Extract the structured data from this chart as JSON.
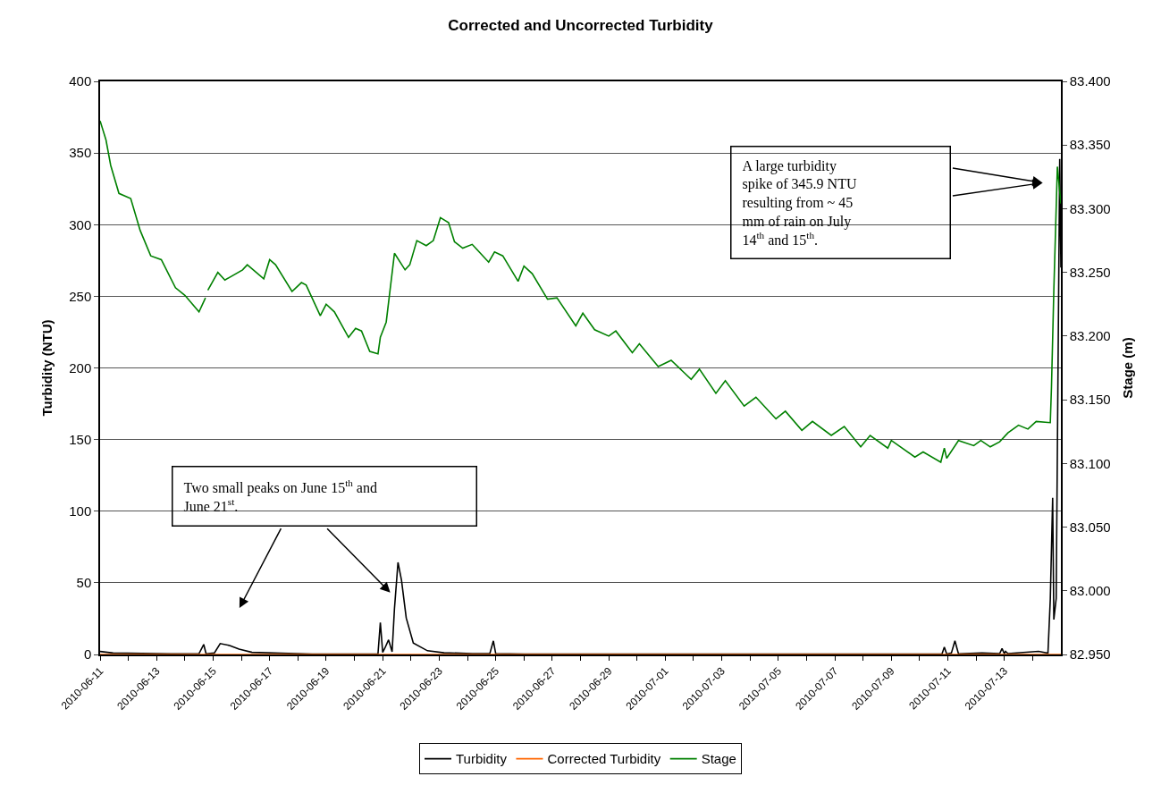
{
  "chart_data": {
    "type": "line",
    "title": "Corrected and Uncorrected Turbidity",
    "ylabel": "Turbidity (NTU)",
    "y2label": "Stage (m)",
    "xlim": [
      "2010-06-11",
      "2010-07-15"
    ],
    "xticks": [
      "2010-06-11",
      {
        "value": "2010-06-12",
        "label": null
      },
      "2010-06-13",
      {
        "value": "2010-06-14",
        "label": null
      },
      "2010-06-15",
      {
        "value": "2010-06-16",
        "label": null
      },
      "2010-06-17",
      {
        "value": "2010-06-18",
        "label": null
      },
      "2010-06-19",
      {
        "value": "2010-06-20",
        "label": null
      },
      "2010-06-21",
      {
        "value": "2010-06-22",
        "label": null
      },
      "2010-06-23",
      {
        "value": "2010-06-24",
        "label": null
      },
      "2010-06-25",
      {
        "value": "2010-06-26",
        "label": null
      },
      "2010-06-27",
      {
        "value": "2010-06-28",
        "label": null
      },
      "2010-06-29",
      {
        "value": "2010-06-30",
        "label": null
      },
      "2010-07-01",
      {
        "value": "2010-07-02",
        "label": null
      },
      "2010-07-03",
      {
        "value": "2010-07-04",
        "label": null
      },
      "2010-07-05",
      {
        "value": "2010-07-06",
        "label": null
      },
      "2010-07-07",
      {
        "value": "2010-07-08",
        "label": null
      },
      "2010-07-09",
      {
        "value": "2010-07-10",
        "label": null
      },
      "2010-07-11",
      {
        "value": "2010-07-12",
        "label": null
      },
      "2010-07-13",
      {
        "value": "2010-07-14",
        "label": null
      }
    ],
    "ylim": [
      0,
      400
    ],
    "yticks": [
      0,
      50,
      100,
      150,
      200,
      250,
      300,
      350,
      400
    ],
    "y2lim": [
      82.95,
      83.4
    ],
    "y2ticks": [
      {
        "value": 82.95,
        "label": "82.950"
      },
      {
        "value": 83.0,
        "label": "83.000"
      },
      {
        "value": 83.05,
        "label": "83.050"
      },
      {
        "value": 83.1,
        "label": "83.100"
      },
      {
        "value": 83.15,
        "label": "83.150"
      },
      {
        "value": 83.2,
        "label": "83.200"
      },
      {
        "value": 83.25,
        "label": "83.250"
      },
      {
        "value": 83.3,
        "label": "83.300"
      },
      {
        "value": 83.35,
        "label": "83.350"
      },
      {
        "value": 83.4,
        "label": "83.400"
      }
    ],
    "grid": "y",
    "legend": "bottom",
    "marker": "none",
    "line_style": "solid",
    "annotations": [
      "Two small peaks on June 15$^{th}$ and June 21$^{st}$.",
      "A large turbidity spike of 345.9 NTU resulting from ~ 45 mm of rain on July 14$^{th}$ and 15$^{th}$."
    ],
    "series": [
      {
        "name": "Turbidity",
        "color": "#000000",
        "x": [
          "2010-06-11T00:00",
          "2010-06-11T11:00",
          "2010-06-13T12:00",
          "2010-06-14T12:00",
          "2010-06-14T16:00",
          "2010-06-14T18:00",
          "2010-06-15T01:00",
          "2010-06-15T06:00",
          "2010-06-15T14:00",
          "2010-06-15T22:00",
          "2010-06-16T09:00",
          "2010-06-17T09:00",
          "2010-06-18T12:00",
          "2010-06-20T20:00",
          "2010-06-20T22:00",
          "2010-06-21T00:00",
          "2010-06-21T02:00",
          "2010-06-21T05:00",
          "2010-06-21T08:00",
          "2010-06-21T10:00",
          "2010-06-21T13:00",
          "2010-06-21T16:00",
          "2010-06-21T20:00",
          "2010-06-22T02:00",
          "2010-06-22T14:00",
          "2010-06-23T04:00",
          "2010-06-24T04:00",
          "2010-06-24T19:00",
          "2010-06-24T22:00",
          "2010-06-25T00:00",
          "2010-06-26T00:00",
          "2010-07-10T19:00",
          "2010-07-10T21:00",
          "2010-07-10T23:00",
          "2010-07-11T03:00",
          "2010-07-11T06:00",
          "2010-07-11T09:00",
          "2010-07-12T05:00",
          "2010-07-12T20:00",
          "2010-07-12T22:00",
          "2010-07-13T00:00",
          "2010-07-13T01:00",
          "2010-07-13T03:00",
          "2010-07-14T05:00",
          "2010-07-14T13:00",
          "2010-07-14T15:00",
          "2010-07-14T17:00",
          "2010-07-14T18:00",
          "2010-07-14T20:00",
          "2010-07-14T23:00",
          "2010-07-15T00:00"
        ],
        "values": [
          2.1,
          1.0,
          0.5,
          0.6,
          7.0,
          0.5,
          1.0,
          7.6,
          6.3,
          3.7,
          1.5,
          0.9,
          0.3,
          0.5,
          22.2,
          1.5,
          4.7,
          10.2,
          1.9,
          32,
          64.3,
          51.7,
          25.5,
          8.0,
          2.6,
          1.2,
          0.6,
          0.6,
          9.5,
          0.6,
          0.3,
          0.3,
          5.2,
          0.3,
          1.0,
          9.5,
          0.5,
          1.0,
          0.6,
          4.1,
          0.6,
          2.2,
          0.6,
          2.2,
          0.9,
          38.5,
          109.3,
          24.4,
          39,
          345.9,
          270
        ]
      },
      {
        "name": "Corrected Turbidity",
        "color": "#ff6600",
        "x": [
          "2010-06-11T00:00",
          "2010-07-15T00:00"
        ],
        "values": [
          0,
          0
        ]
      },
      {
        "name": "Stage",
        "color": "#008000",
        "axis": "y2",
        "x": [
          "2010-06-11T00:00",
          "2010-06-11T05:00",
          "2010-06-11T09:00",
          "2010-06-11T16:00",
          "2010-06-12T02:00",
          "2010-06-12T10:00",
          "2010-06-12T19:00",
          "2010-06-13T04:00",
          "2010-06-13T16:00",
          "2010-06-14T00:00",
          "2010-06-14T12:00",
          "2010-06-14T17:30",
          "2010-06-14T18:30",
          "2010-06-14T19:30",
          "2010-06-15T04:00",
          "2010-06-15T10:00",
          "2010-06-16T01:00",
          "2010-06-16T05:00",
          "2010-06-16T19:00",
          "2010-06-17T00:00",
          "2010-06-17T05:00",
          "2010-06-17T19:00",
          "2010-06-18T03:00",
          "2010-06-18T07:00",
          "2010-06-18T19:00",
          "2010-06-19T00:00",
          "2010-06-19T07:00",
          "2010-06-19T19:00",
          "2010-06-20T01:00",
          "2010-06-20T06:00",
          "2010-06-20T13:00",
          "2010-06-20T20:00",
          "2010-06-20T22:00",
          "2010-06-21T03:00",
          "2010-06-21T10:00",
          "2010-06-21T19:00",
          "2010-06-21T23:00",
          "2010-06-22T05:00",
          "2010-06-22T13:00",
          "2010-06-22T19:00",
          "2010-06-23T01:00",
          "2010-06-23T08:00",
          "2010-06-23T13:00",
          "2010-06-23T20:00",
          "2010-06-24T04:00",
          "2010-06-24T08:00",
          "2010-06-24T18:00",
          "2010-06-24T23:00",
          "2010-06-25T06:00",
          "2010-06-25T19:00",
          "2010-06-26T00:00",
          "2010-06-26T07:00",
          "2010-06-26T20:00",
          "2010-06-27T04:00",
          "2010-06-27T20:00",
          "2010-06-28T02:00",
          "2010-06-28T12:00",
          "2010-06-29T00:00",
          "2010-06-29T06:00",
          "2010-06-29T20:00",
          "2010-06-30T02:00",
          "2010-06-30T18:00",
          "2010-07-01T05:00",
          "2010-07-01T22:00",
          "2010-07-02T05:00",
          "2010-07-02T19:00",
          "2010-07-03T03:00",
          "2010-07-03T19:00",
          "2010-07-04T05:00",
          "2010-07-04T22:00",
          "2010-07-05T06:00",
          "2010-07-05T20:00",
          "2010-07-06T05:00",
          "2010-07-06T21:00",
          "2010-07-07T08:00",
          "2010-07-07T22:00",
          "2010-07-08T06:00",
          "2010-07-08T21:00",
          "2010-07-09T00:00",
          "2010-07-09T20:00",
          "2010-07-10T03:00",
          "2010-07-10T18:00",
          "2010-07-10T21:00",
          "2010-07-10T23:00",
          "2010-07-11T09:00",
          "2010-07-11T22:00",
          "2010-07-12T04:00",
          "2010-07-12T12:00",
          "2010-07-12T20:00",
          "2010-07-13T03:00",
          "2010-07-13T12:00",
          "2010-07-13T20:00",
          "2010-07-14T03:00",
          "2010-07-14T15:00",
          "2010-07-14T16:00",
          "2010-07-14T18:00",
          "2010-07-14T21:00",
          "2010-07-15T00:00"
        ],
        "values": [
          83.369,
          83.354,
          83.334,
          83.312,
          83.308,
          83.283,
          83.263,
          83.26,
          83.238,
          83.232,
          83.219,
          83.23,
          null,
          83.236,
          83.25,
          83.244,
          83.252,
          83.256,
          83.245,
          83.26,
          83.256,
          83.235,
          83.242,
          83.24,
          83.216,
          83.225,
          83.219,
          83.199,
          83.206,
          83.204,
          83.188,
          83.186,
          83.199,
          83.211,
          83.265,
          83.252,
          83.256,
          83.275,
          83.271,
          83.275,
          83.293,
          83.289,
          83.274,
          83.269,
          83.272,
          83.268,
          83.258,
          83.266,
          83.263,
          83.243,
          83.255,
          83.249,
          83.229,
          83.23,
          83.208,
          83.218,
          83.205,
          83.2,
          83.204,
          83.187,
          83.194,
          83.176,
          83.181,
          83.166,
          83.174,
          83.155,
          83.165,
          83.145,
          83.152,
          83.135,
          83.141,
          83.126,
          83.133,
          83.122,
          83.129,
          83.113,
          83.122,
          83.112,
          83.118,
          83.105,
          83.109,
          83.101,
          83.112,
          83.104,
          83.118,
          83.114,
          83.118,
          83.113,
          83.117,
          83.124,
          83.13,
          83.127,
          83.133,
          83.132,
          83.16,
          83.236,
          83.333,
          83.304
        ]
      }
    ]
  }
}
